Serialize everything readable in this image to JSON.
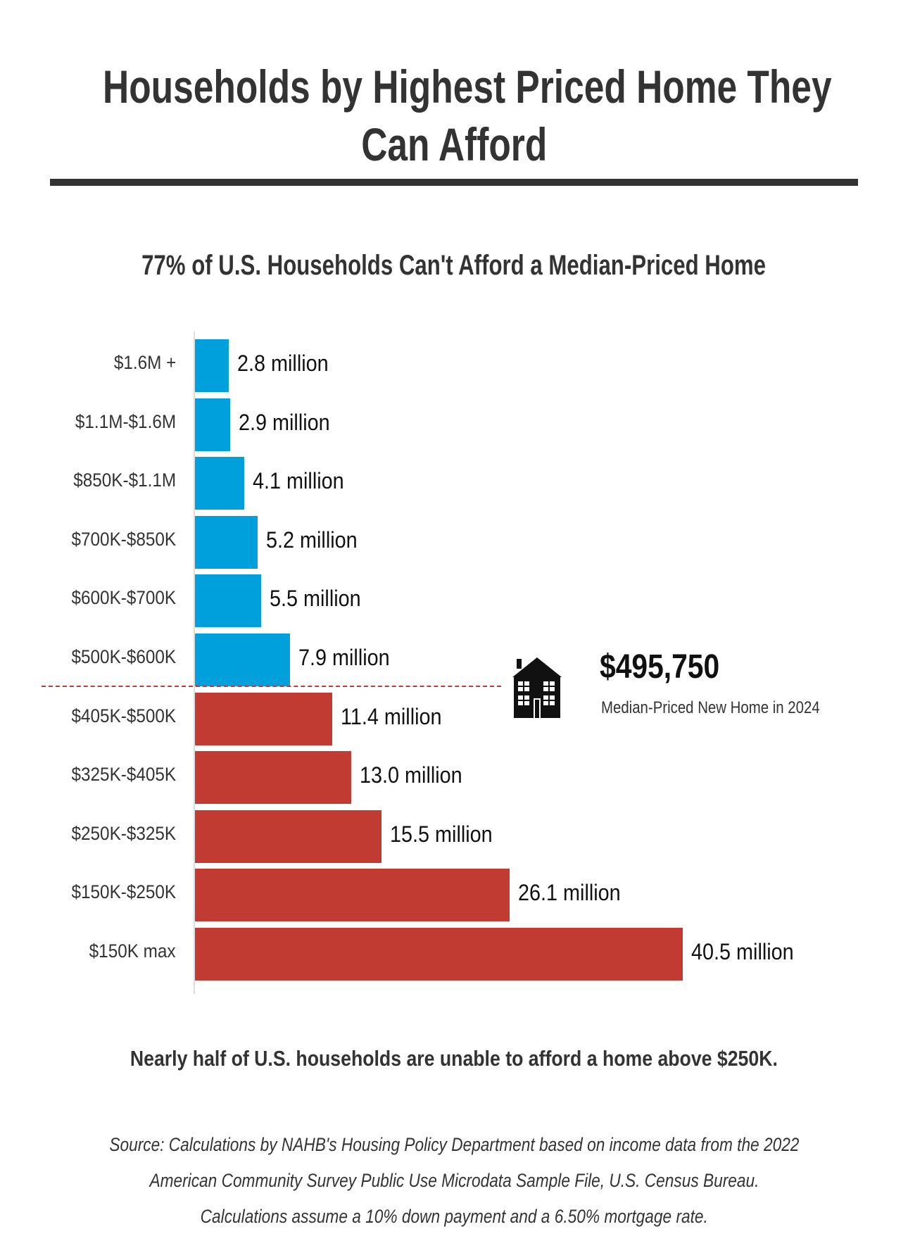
{
  "title_lines": [
    "Households by Highest Priced Home They",
    "Can Afford"
  ],
  "subtitle": "77% of U.S. Households Can't Afford a Median-Priced Home",
  "chart_data": {
    "type": "bar",
    "orientation": "horizontal",
    "categories": [
      "$1.6M +",
      "$1.1M-$1.6M",
      "$850K-$1.1M",
      "$700K-$850K",
      "$600K-$700K",
      "$500K-$600K",
      "$405K-$500K",
      "$325K-$405K",
      "$250K-$325K",
      "$150K-$250K",
      "$150K max"
    ],
    "values": [
      2.8,
      2.9,
      4.1,
      5.2,
      5.5,
      7.9,
      11.4,
      13.0,
      15.5,
      26.1,
      40.5
    ],
    "value_labels": [
      "2.8 million",
      "2.9 million",
      "4.1 million",
      "5.2 million",
      "5.5 million",
      "7.9 million",
      "11.4 million",
      "13.0 million",
      "15.5 million",
      "26.1 million",
      "40.5 million"
    ],
    "unit": "million households",
    "colors": {
      "affordable_above_median": "#00a0dc",
      "below_median": "#c23b33"
    },
    "above_median_count": 6,
    "xlim": [
      0,
      40.5
    ],
    "grid": false,
    "annotation": {
      "value": "$495,750",
      "caption": "Median-Priced New Home in 2024",
      "icon": "house-icon",
      "line_style": "dashed",
      "line_color": "#c23b33"
    }
  },
  "note": "Nearly half of U.S. households are unable to afford a home above $250K.",
  "source_lines": [
    "Source: Calculations by NAHB's Housing Policy Department based on income data from the 2022",
    "American Community Survey Public Use Microdata Sample File, U.S. Census Bureau.",
    "Calculations assume a 10% down payment and a 6.50% mortgage rate."
  ]
}
